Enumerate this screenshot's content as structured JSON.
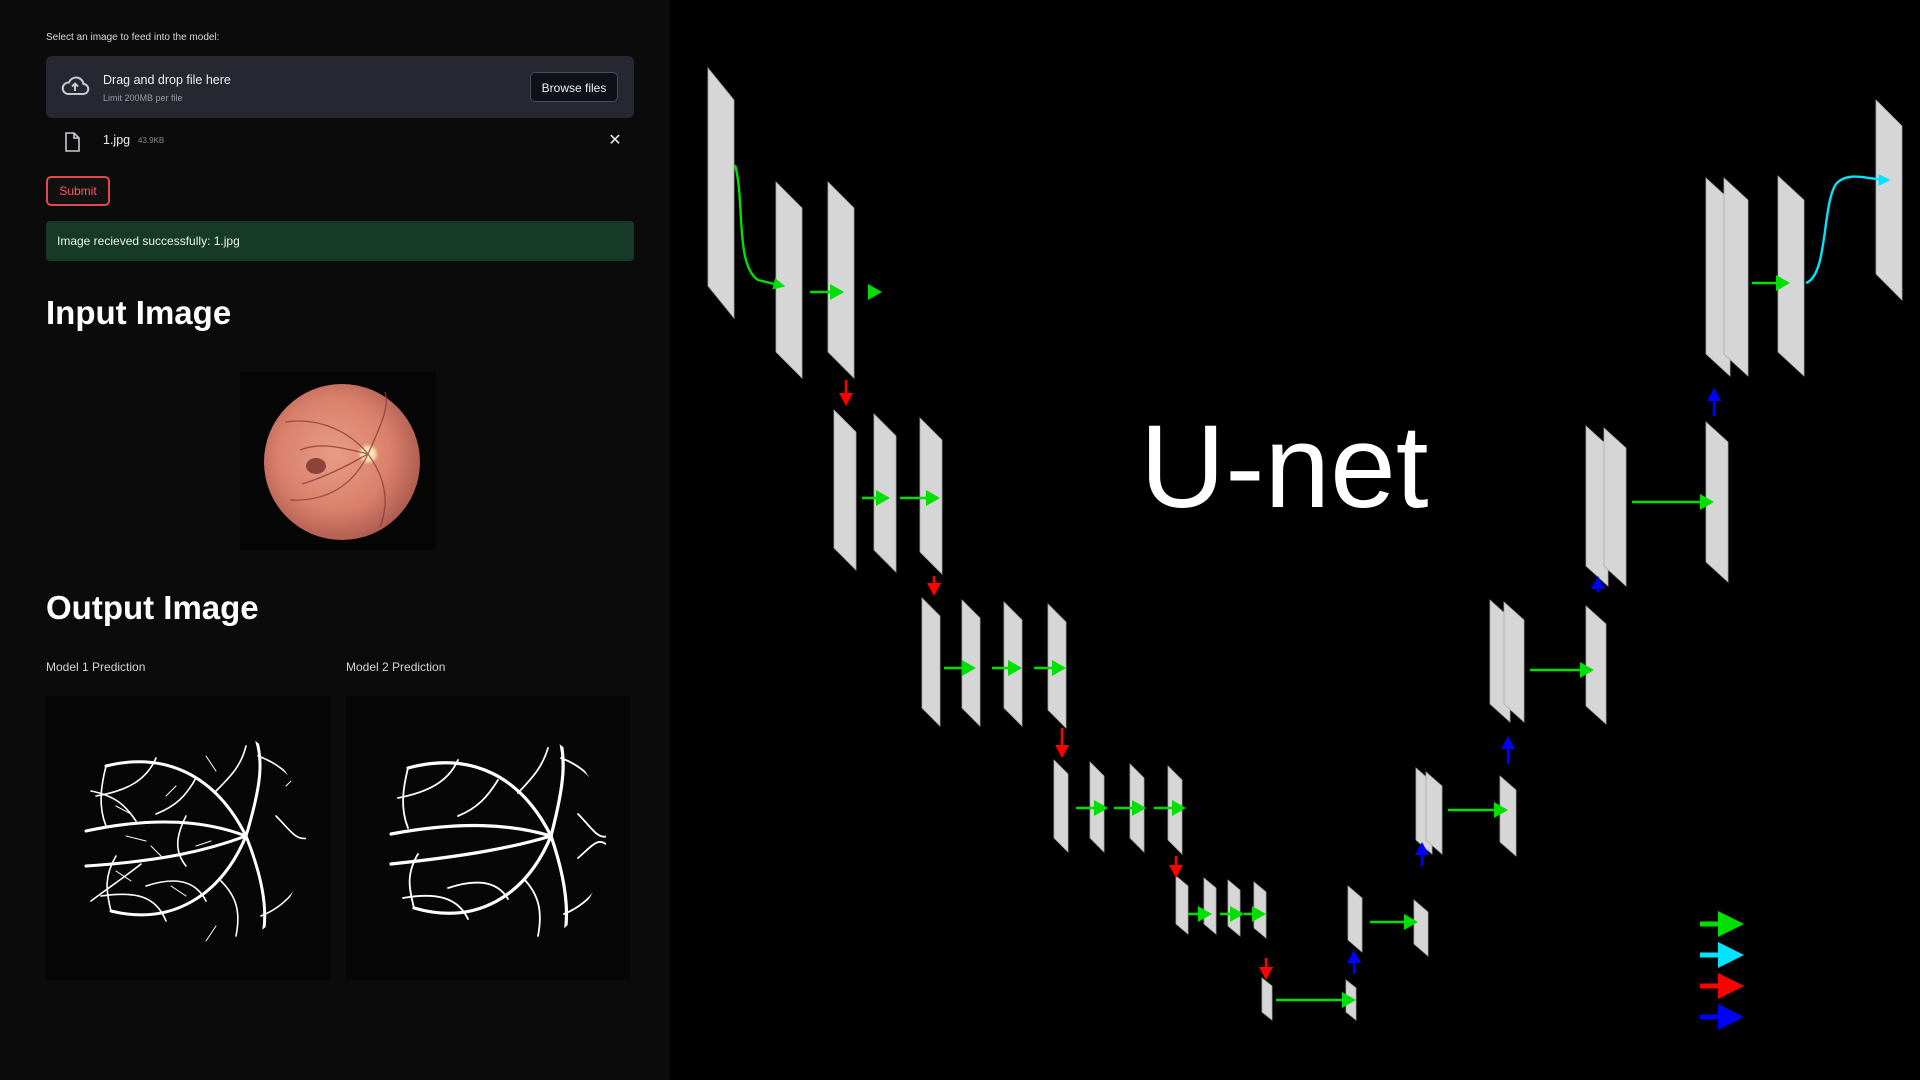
{
  "uploader": {
    "label": "Select an image to feed into the model:",
    "dropzone_title": "Drag and drop file here",
    "dropzone_limit": "Limit 200MB per file",
    "browse_label": "Browse files"
  },
  "uploaded_file": {
    "name": "1.jpg",
    "size": "43.9KB"
  },
  "submit_label": "Submit",
  "success_message": "Image recieved successfully: 1.jpg",
  "input_section": {
    "heading": "Input Image"
  },
  "output_section": {
    "heading": "Output Image",
    "model1_caption": "Model 1 Prediction",
    "model2_caption": "Model 2 Prediction"
  },
  "diagram": {
    "title": "U-net",
    "legend_colors": [
      "#00e000",
      "#00e5ff",
      "#ff0000",
      "#0000ff"
    ]
  },
  "colors": {
    "dropzone_bg": "#262730",
    "success_bg": "#173928",
    "submit_border": "#e04a4a",
    "layer_fill": "#d6d6d6",
    "arrow_green": "#00e000",
    "arrow_cyan": "#00e5ff",
    "arrow_red": "#ff0000",
    "arrow_blue": "#0000ff"
  },
  "icons": [
    "cloud-upload-icon",
    "file-icon",
    "close-icon"
  ]
}
